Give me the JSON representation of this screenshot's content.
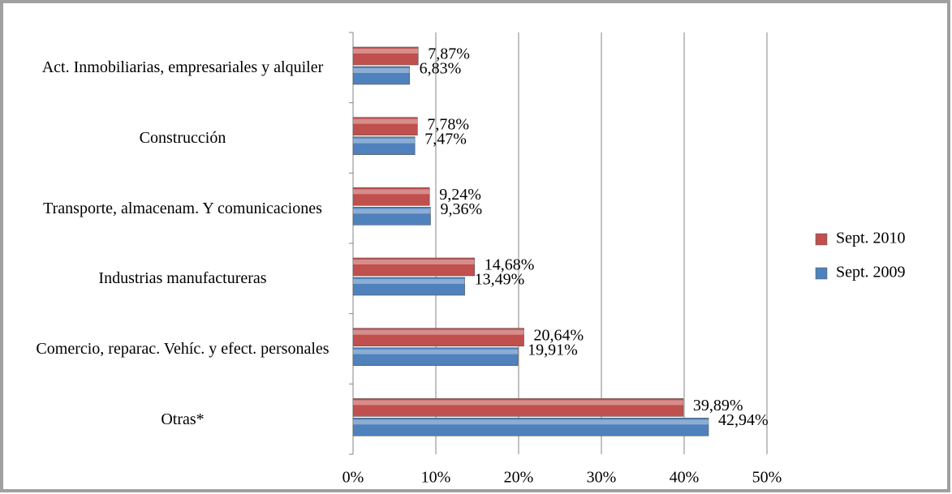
{
  "chart_data": {
    "type": "bar",
    "orientation": "horizontal",
    "categories": [
      "Act. Inmobiliarias, empresariales y alquiler",
      "Construcción",
      "Transporte, almacenam. Y comunicaciones",
      "Industrias manufactureras",
      "Comercio, reparac. Vehíc. y efect. personales",
      "Otras*"
    ],
    "series": [
      {
        "name": "Sept. 2010",
        "color": "#c0504d",
        "values": [
          7.87,
          7.78,
          9.24,
          14.68,
          20.64,
          39.89
        ],
        "value_labels": [
          "7,87%",
          "7,78%",
          "9,24%",
          "14,68%",
          "20,64%",
          "39,89%"
        ]
      },
      {
        "name": "Sept. 2009",
        "color": "#4f81bd",
        "values": [
          6.83,
          7.47,
          9.36,
          13.49,
          19.91,
          42.94
        ],
        "value_labels": [
          "6,83%",
          "7,47%",
          "9,36%",
          "13,49%",
          "19,91%",
          "42,94%"
        ]
      }
    ],
    "xlim": [
      0,
      50
    ],
    "xticks": [
      {
        "value": 0,
        "label": "0%"
      },
      {
        "value": 10,
        "label": "10%"
      },
      {
        "value": 20,
        "label": "20%"
      },
      {
        "value": 30,
        "label": "30%"
      },
      {
        "value": 40,
        "label": "40%"
      },
      {
        "value": 50,
        "label": "50%"
      }
    ],
    "grid": true,
    "legend": "right"
  }
}
